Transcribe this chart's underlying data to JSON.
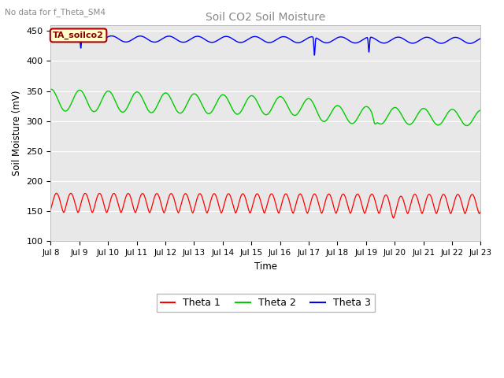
{
  "title": "Soil CO2 Soil Moisture",
  "subtitle": "No data for f_Theta_SM4",
  "ylabel": "Soil Moisture (mV)",
  "xlabel": "Time",
  "annotation": "TA_soilco2",
  "ylim": [
    100,
    460
  ],
  "yticks": [
    100,
    150,
    200,
    250,
    300,
    350,
    400,
    450
  ],
  "x_tick_labels": [
    "Jul 8",
    "Jul 9",
    "Jul 10",
    "Jul 11",
    "Jul 12",
    "Jul 13",
    "Jul 14",
    "Jul 15",
    "Jul 16",
    "Jul 17",
    "Jul 18",
    "Jul 19",
    "Jul 20",
    "Jul 21",
    "Jul 22",
    "Jul 23"
  ],
  "fig_bg_color": "#ffffff",
  "plot_bg_color": "#e8e8e8",
  "line_colors": {
    "theta1": "#ff0000",
    "theta2": "#00cc00",
    "theta3": "#0000ff"
  },
  "legend_labels": [
    "Theta 1",
    "Theta 2",
    "Theta 3"
  ],
  "num_days": 15
}
